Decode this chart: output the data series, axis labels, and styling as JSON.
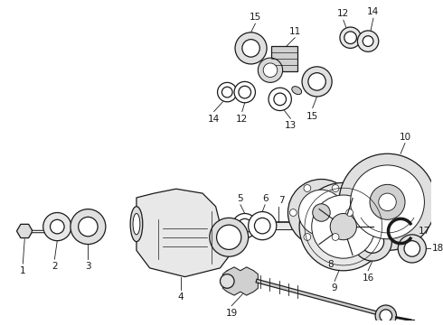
{
  "bg_color": "#ffffff",
  "line_color": "#1a1a1a",
  "figsize": [
    4.9,
    3.6
  ],
  "dpi": 100,
  "gray_light": "#cccccc",
  "gray_mid": "#aaaaaa",
  "gray_dark": "#888888"
}
